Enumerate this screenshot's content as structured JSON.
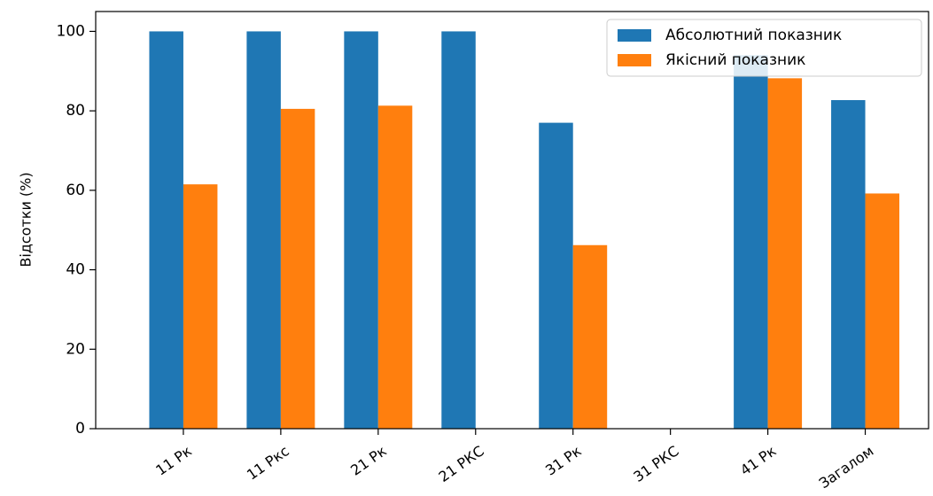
{
  "chart_data": {
    "type": "bar",
    "categories": [
      "11 Рк",
      "11 Ркс",
      "21 Рк",
      "21 РКС",
      "31 Рк",
      "31 РКС",
      "41 Рк",
      "Загалом"
    ],
    "series": [
      {
        "name": "Абсолютний показник",
        "color": "#1f77b4",
        "values": [
          100,
          100,
          100,
          100,
          77,
          0,
          94,
          82.7
        ]
      },
      {
        "name": "Якісний показник",
        "color": "#ff7f0e",
        "values": [
          61.5,
          80.5,
          81.3,
          0,
          46.2,
          0,
          88.2,
          59.2
        ]
      }
    ],
    "ylabel": "Відсотки (%)",
    "xlabel": "",
    "ylim": [
      0,
      105
    ],
    "yticks": [
      0,
      20,
      40,
      60,
      80,
      100
    ],
    "grid": false,
    "legend_position": "top-right"
  }
}
